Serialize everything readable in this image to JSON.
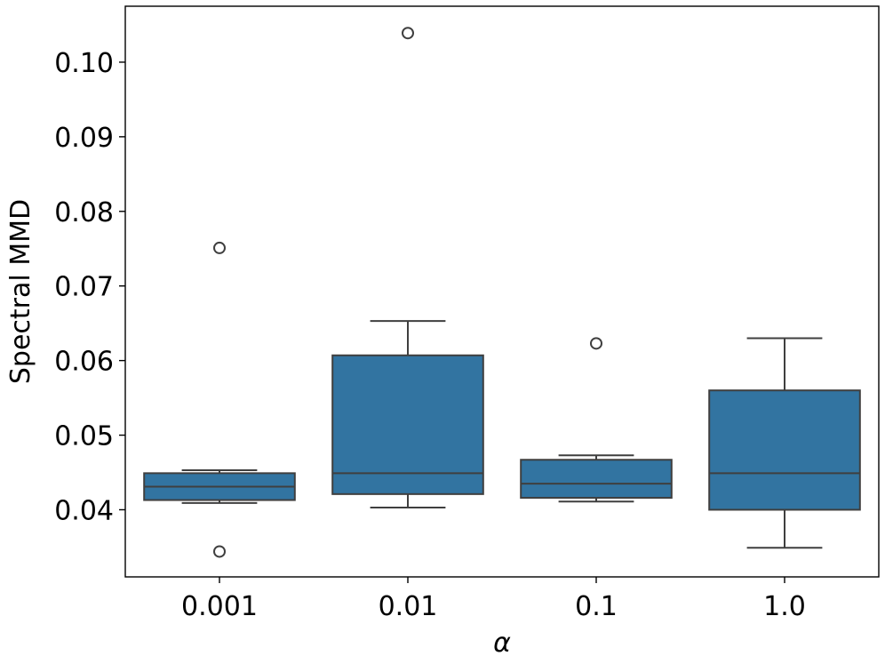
{
  "chart_data": {
    "type": "box",
    "title": "",
    "xlabel": "α",
    "ylabel": "Spectral MMD",
    "categories": [
      "0.001",
      "0.01",
      "0.1",
      "1.0"
    ],
    "ylim": [
      0.031,
      0.1075
    ],
    "yticks": [
      "0.04",
      "0.05",
      "0.06",
      "0.07",
      "0.08",
      "0.09",
      "0.10"
    ],
    "grid": false,
    "legend": "none",
    "colors": {
      "box_fill": "#3274a1",
      "box_edge": "#3f3f3f",
      "axis": "#000000"
    },
    "boxes": [
      {
        "category": "0.001",
        "whisker_low": 0.0409,
        "q1": 0.0413,
        "median": 0.0431,
        "q3": 0.0449,
        "whisker_high": 0.0453,
        "outliers": [
          0.0751,
          0.0344
        ]
      },
      {
        "category": "0.01",
        "whisker_low": 0.0403,
        "q1": 0.0421,
        "median": 0.0449,
        "q3": 0.0607,
        "whisker_high": 0.0653,
        "outliers": [
          0.1039
        ]
      },
      {
        "category": "0.1",
        "whisker_low": 0.0411,
        "q1": 0.0416,
        "median": 0.0435,
        "q3": 0.0467,
        "whisker_high": 0.0473,
        "outliers": [
          0.0623
        ]
      },
      {
        "category": "1.0",
        "whisker_low": 0.0349,
        "q1": 0.04,
        "median": 0.0449,
        "q3": 0.056,
        "whisker_high": 0.063,
        "outliers": []
      }
    ]
  }
}
